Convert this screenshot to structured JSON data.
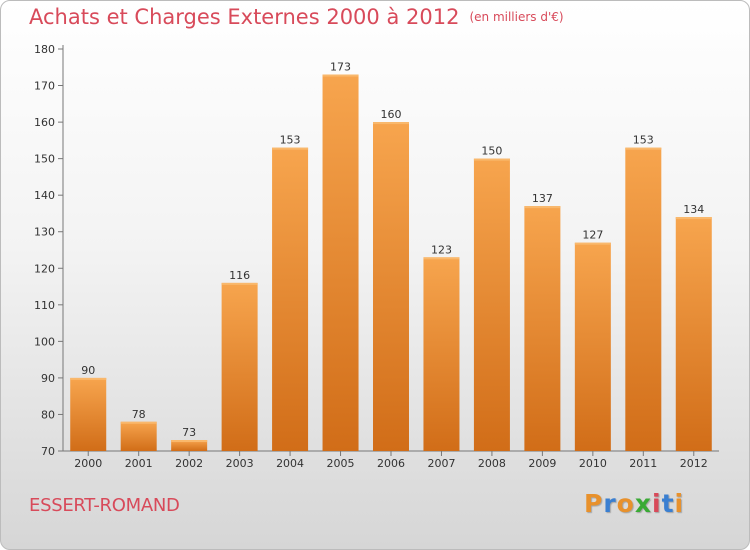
{
  "header": {
    "title": "Achats et Charges Externes 2000 à 2012",
    "subtitle": "(en milliers d'€)"
  },
  "footer": {
    "city": "ESSERT-ROMAND",
    "logo_text": "Proxiti",
    "logo_colors": [
      "#e8912c",
      "#3a7fd1",
      "#e8912c",
      "#3aaa35",
      "#d84a5a",
      "#3a7fd1",
      "#e8912c"
    ]
  },
  "colors": {
    "bar_top": "#f7a54e",
    "bar_bottom": "#d16d18",
    "title": "#d84a5a"
  },
  "chart_data": {
    "type": "bar",
    "categories": [
      "2000",
      "2001",
      "2002",
      "2003",
      "2004",
      "2005",
      "2006",
      "2007",
      "2008",
      "2009",
      "2010",
      "2011",
      "2012"
    ],
    "values": [
      90,
      78,
      73,
      116,
      153,
      173,
      160,
      123,
      150,
      137,
      127,
      153,
      134
    ],
    "data_labels": [
      "90",
      "78",
      "73",
      "116",
      "153",
      "173",
      "160",
      "123",
      "150",
      "137",
      "127",
      "153",
      "134"
    ],
    "yticks": [
      "70",
      "80",
      "90",
      "100",
      "110",
      "120",
      "130",
      "140",
      "150",
      "160",
      "170",
      "180"
    ],
    "ylim": [
      70,
      180
    ],
    "xlabel": "",
    "ylabel": "",
    "grid": false
  }
}
